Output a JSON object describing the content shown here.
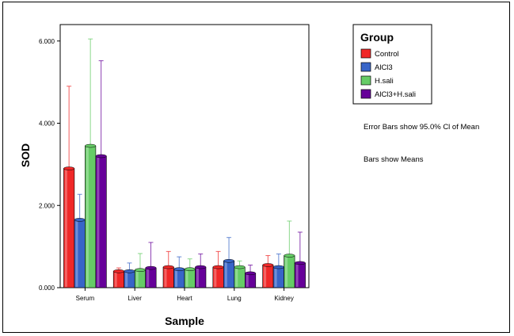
{
  "chart_data": {
    "type": "bar",
    "title": "",
    "xlabel": "Sample",
    "ylabel": "SOD",
    "categories": [
      "Serum",
      "Liver",
      "Heart",
      "Lung",
      "Kidney"
    ],
    "ylim": [
      0,
      6.4
    ],
    "yticks": [
      0,
      2,
      4,
      6
    ],
    "ytick_labels": [
      "0.000",
      "2.000",
      "4.000",
      "6.000"
    ],
    "grid": false,
    "legend": {
      "title": "Group",
      "position": "right-top"
    },
    "series": [
      {
        "name": "Control",
        "color": "#f02828",
        "values": [
          2.9,
          0.4,
          0.5,
          0.5,
          0.55
        ],
        "err_upper": [
          4.9,
          0.48,
          0.88,
          0.88,
          0.78
        ]
      },
      {
        "name": "AlCl3",
        "color": "#3865c8",
        "values": [
          1.65,
          0.4,
          0.45,
          0.65,
          0.5
        ],
        "err_upper": [
          2.27,
          0.6,
          0.75,
          1.22,
          0.82
        ]
      },
      {
        "name": "H.sali",
        "color": "#66cc66",
        "values": [
          3.45,
          0.43,
          0.45,
          0.5,
          0.78
        ],
        "err_upper": [
          6.05,
          0.83,
          0.7,
          0.65,
          1.62
        ]
      },
      {
        "name": "AlCl3+H.sali",
        "color": "#660099",
        "values": [
          3.2,
          0.48,
          0.5,
          0.35,
          0.6
        ],
        "err_upper": [
          5.52,
          1.1,
          0.82,
          0.55,
          1.35
        ]
      }
    ],
    "annotations": [
      "Error Bars show 95.0% Cl of Mean",
      "Bars show Means"
    ]
  }
}
